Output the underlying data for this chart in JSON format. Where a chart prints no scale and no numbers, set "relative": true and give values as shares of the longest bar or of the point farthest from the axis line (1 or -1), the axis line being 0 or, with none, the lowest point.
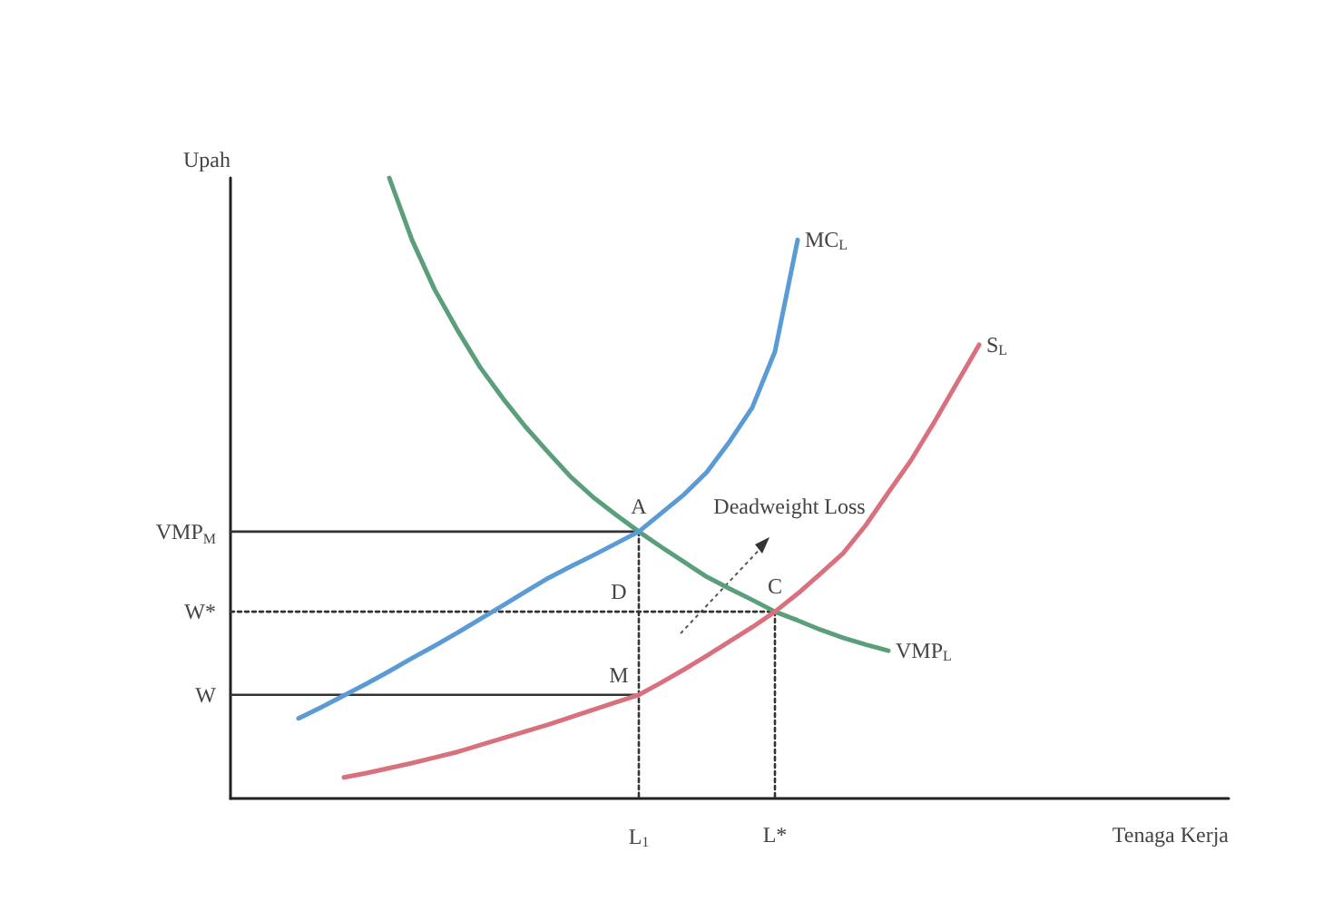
{
  "chart_data": {
    "type": "line",
    "relative": true,
    "xlabel": "Tenaga Kerja",
    "ylabel": "Upah",
    "categories": [
      null,
      null,
      null,
      null,
      null,
      null,
      null,
      null,
      null,
      null,
      null,
      null,
      null,
      null,
      null,
      null,
      null,
      null,
      "L$_{1}$",
      null,
      null,
      null,
      null,
      null,
      "L*",
      null,
      null,
      null,
      null,
      null,
      null,
      null,
      null,
      null,
      null,
      null,
      null,
      null,
      null,
      null,
      null,
      null,
      null,
      null,
      null
    ],
    "grid": false,
    "legend": false,
    "marker": "none",
    "series": [
      {
        "name": "VMP$_{L}$",
        "color": "#5a9e7c",
        "values": [
          null,
          null,
          null,
          null,
          null,
          null,
          null,
          1,
          0.9,
          0.82,
          0.755,
          0.695,
          0.645,
          0.599,
          0.558,
          0.518,
          0.485,
          0.457,
          0.43,
          0.405,
          0.381,
          0.357,
          0.338,
          0.32,
          0.301,
          0.287,
          0.272,
          0.259,
          0.248,
          0.238,
          null,
          null,
          null,
          null,
          null,
          null,
          null,
          null,
          null,
          null,
          null,
          null,
          null,
          null,
          null
        ]
      },
      {
        "name": "MC$_{L}$",
        "color": "#5b9bd5",
        "values": [
          null,
          null,
          null,
          0.129,
          0.147,
          0.166,
          0.185,
          0.205,
          0.226,
          0.246,
          0.267,
          0.289,
          0.311,
          0.333,
          0.355,
          0.374,
          0.392,
          0.411,
          0.43,
          0.46,
          0.49,
          0.526,
          0.575,
          0.63,
          0.72,
          0.9,
          null,
          null,
          null,
          null,
          null,
          null,
          null,
          null,
          null,
          null,
          null,
          null,
          null,
          null,
          null,
          null,
          null,
          null,
          null
        ]
      },
      {
        "name": "S$_{L}$",
        "color": "#d9707e",
        "values": [
          null,
          null,
          null,
          null,
          null,
          0.034,
          0.041,
          0.049,
          0.057,
          0.066,
          0.075,
          0.086,
          0.097,
          0.108,
          0.119,
          0.131,
          0.143,
          0.155,
          0.167,
          0.187,
          0.208,
          0.23,
          0.253,
          0.276,
          0.301,
          0.33,
          0.362,
          0.395,
          0.44,
          0.493,
          0.545,
          0.605,
          0.668,
          0.731,
          null,
          null,
          null,
          null,
          null,
          null,
          null,
          null,
          null,
          null,
          null
        ]
      },
      {
        "name": "VMP$_{M}$",
        "color": "#333333",
        "line_style": "solid",
        "values": [
          0.43,
          0.43,
          0.43,
          0.43,
          0.43,
          0.43,
          0.43,
          0.43,
          0.43,
          0.43,
          0.43,
          0.43,
          0.43,
          0.43,
          0.43,
          0.43,
          0.43,
          0.43,
          0.43,
          null,
          null,
          null,
          null,
          null,
          null,
          null,
          null,
          null,
          null,
          null,
          null,
          null,
          null,
          null,
          null,
          null,
          null,
          null,
          null,
          null,
          null,
          null,
          null,
          null,
          null
        ]
      },
      {
        "name": "W*",
        "color": "#333333",
        "line_style": "dotted",
        "values": [
          0.301,
          0.301,
          0.301,
          0.301,
          0.301,
          0.301,
          0.301,
          0.301,
          0.301,
          0.301,
          0.301,
          0.301,
          0.301,
          0.301,
          0.301,
          0.301,
          0.301,
          0.301,
          0.301,
          0.301,
          0.301,
          0.301,
          0.301,
          0.301,
          0.301,
          null,
          null,
          null,
          null,
          null,
          null,
          null,
          null,
          null,
          null,
          null,
          null,
          null,
          null,
          null,
          null,
          null,
          null,
          null,
          null
        ]
      },
      {
        "name": "W",
        "color": "#333333",
        "line_style": "solid",
        "values": [
          0.167,
          0.167,
          0.167,
          0.167,
          0.167,
          0.167,
          0.167,
          0.167,
          0.167,
          0.167,
          0.167,
          0.167,
          0.167,
          0.167,
          0.167,
          0.167,
          0.167,
          0.167,
          0.167,
          null,
          null,
          null,
          null,
          null,
          null,
          null,
          null,
          null,
          null,
          null,
          null,
          null,
          null,
          null,
          null,
          null,
          null,
          null,
          null,
          null,
          null,
          null,
          null,
          null,
          null
        ]
      },
      {
        "color": "#333333",
        "line_style": "dotted",
        "x": [
          "L$_{1}$",
          "L$_{1}$"
        ],
        "values": [
          0.43,
          0
        ]
      },
      {
        "color": "#333333",
        "line_style": "dotted",
        "x": [
          "L*",
          "L*"
        ],
        "values": [
          0.301,
          0
        ]
      }
    ],
    "annotations": [
      {
        "text": "A",
        "x": "L$_{1}$",
        "y": 0.43
      },
      {
        "text": "D",
        "x": "L$_{1}$",
        "y": 0.301
      },
      {
        "text": "M",
        "x": "L$_{1}$",
        "y": 0.167
      },
      {
        "text": "C",
        "x": "L*",
        "y": 0.301
      },
      "Deadweight Loss"
    ]
  }
}
